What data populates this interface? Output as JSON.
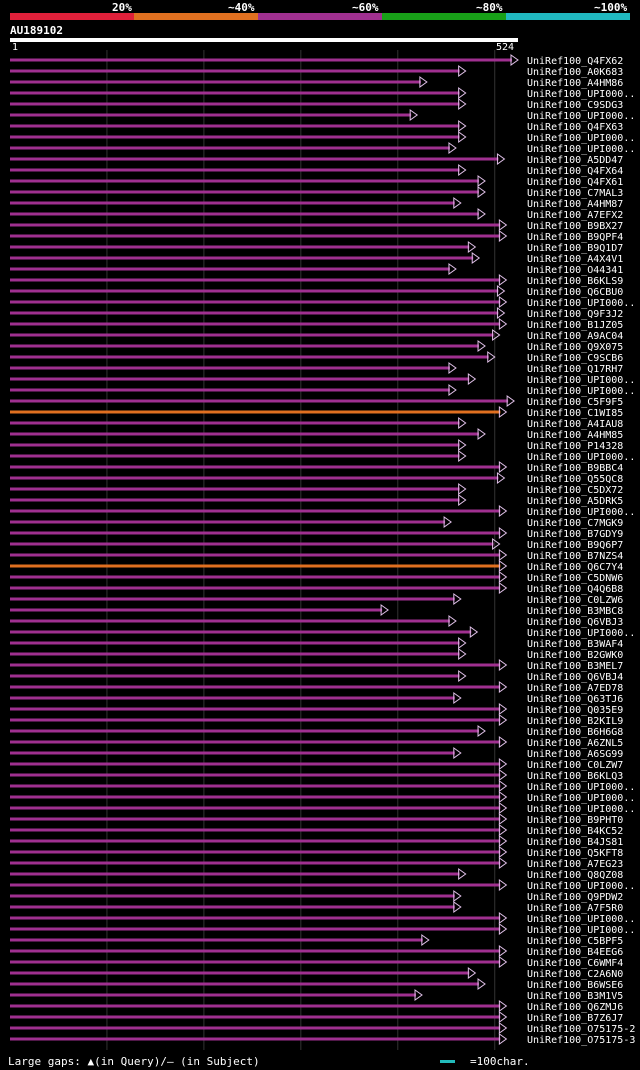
{
  "legend": {
    "labels": [
      "20%",
      "~40%",
      "~60%",
      "~80%",
      "~100%"
    ],
    "colors": [
      "#e0203a",
      "#e07020",
      "#a03090",
      "#18a018",
      "#20b8c0"
    ]
  },
  "query": {
    "id": "AU189102",
    "start_label": "1",
    "end_label": "524"
  },
  "footer": {
    "gaps_text": "Large gaps: ▲(in Query)/– (in Subject)",
    "scale_text": "=100char."
  },
  "chart_data": {
    "type": "alignment",
    "query_length": 524,
    "hits": [
      {
        "name": "UniRef100_Q4FX62",
        "end": 524,
        "color": "#a03090"
      },
      {
        "name": "UniRef100_A0K683",
        "end": 470,
        "color": "#a03090"
      },
      {
        "name": "UniRef100_A4HM86",
        "end": 430,
        "color": "#a03090"
      },
      {
        "name": "UniRef100_UPI000..",
        "end": 470,
        "color": "#a03090"
      },
      {
        "name": "UniRef100_C9SDG3",
        "end": 470,
        "color": "#a03090"
      },
      {
        "name": "UniRef100_UPI000..",
        "end": 420,
        "color": "#a03090"
      },
      {
        "name": "UniRef100_Q4FX63",
        "end": 470,
        "color": "#a03090"
      },
      {
        "name": "UniRef100_UPI000..",
        "end": 470,
        "color": "#a03090"
      },
      {
        "name": "UniRef100_UPI000..",
        "end": 460,
        "color": "#a03090"
      },
      {
        "name": "UniRef100_A5DD47",
        "end": 510,
        "color": "#a03090"
      },
      {
        "name": "UniRef100_Q4FX64",
        "end": 470,
        "color": "#a03090"
      },
      {
        "name": "UniRef100_Q4FX61",
        "end": 490,
        "color": "#a03090"
      },
      {
        "name": "UniRef100_C7MAL3",
        "end": 490,
        "color": "#a03090"
      },
      {
        "name": "UniRef100_A4HM87",
        "end": 465,
        "color": "#a03090"
      },
      {
        "name": "UniRef100_A7EFX2",
        "end": 490,
        "color": "#a03090"
      },
      {
        "name": "UniRef100_B9BX27",
        "end": 512,
        "color": "#a03090"
      },
      {
        "name": "UniRef100_B9QPF4",
        "end": 512,
        "color": "#a03090"
      },
      {
        "name": "UniRef100_B9Q1D7",
        "end": 480,
        "color": "#a03090"
      },
      {
        "name": "UniRef100_A4X4V1",
        "end": 484,
        "color": "#a03090"
      },
      {
        "name": "UniRef100_O44341",
        "end": 460,
        "color": "#a03090"
      },
      {
        "name": "UniRef100_B6KLS9",
        "end": 512,
        "color": "#a03090"
      },
      {
        "name": "UniRef100_Q6CBU0",
        "end": 510,
        "color": "#a03090"
      },
      {
        "name": "UniRef100_UPI000..",
        "end": 512,
        "color": "#a03090"
      },
      {
        "name": "UniRef100_Q9F3J2",
        "end": 510,
        "color": "#a03090"
      },
      {
        "name": "UniRef100_B1JZ05",
        "end": 512,
        "color": "#a03090"
      },
      {
        "name": "UniRef100_A9AC04",
        "end": 505,
        "color": "#a03090"
      },
      {
        "name": "UniRef100_Q9X075",
        "end": 490,
        "color": "#a03090"
      },
      {
        "name": "UniRef100_C9SCB6",
        "end": 500,
        "color": "#a03090"
      },
      {
        "name": "UniRef100_Q17RH7",
        "end": 460,
        "color": "#a03090"
      },
      {
        "name": "UniRef100_UPI000..",
        "end": 480,
        "color": "#a03090"
      },
      {
        "name": "UniRef100_UPI000..",
        "end": 460,
        "color": "#a03090"
      },
      {
        "name": "UniRef100_C5F9F5",
        "end": 520,
        "color": "#a03090"
      },
      {
        "name": "UniRef100_C1WI85",
        "end": 512,
        "color": "#e07020"
      },
      {
        "name": "UniRef100_A4IAU8",
        "end": 470,
        "color": "#a03090"
      },
      {
        "name": "UniRef100_A4HM85",
        "end": 490,
        "color": "#a03090"
      },
      {
        "name": "UniRef100_P14328",
        "end": 470,
        "color": "#a03090"
      },
      {
        "name": "UniRef100_UPI000..",
        "end": 470,
        "color": "#a03090"
      },
      {
        "name": "UniRef100_B9BBC4",
        "end": 512,
        "color": "#a03090"
      },
      {
        "name": "UniRef100_Q55QC8",
        "end": 510,
        "color": "#a03090"
      },
      {
        "name": "UniRef100_C5DX72",
        "end": 470,
        "color": "#a03090"
      },
      {
        "name": "UniRef100_A5DRK5",
        "end": 470,
        "color": "#a03090"
      },
      {
        "name": "UniRef100_UPI000..",
        "end": 512,
        "color": "#a03090"
      },
      {
        "name": "UniRef100_C7MGK9",
        "end": 455,
        "color": "#a03090"
      },
      {
        "name": "UniRef100_B7GDY9",
        "end": 512,
        "color": "#a03090"
      },
      {
        "name": "UniRef100_B9Q6P7",
        "end": 505,
        "color": "#a03090"
      },
      {
        "name": "UniRef100_B7NZS4",
        "end": 512,
        "color": "#a03090"
      },
      {
        "name": "UniRef100_Q6C7Y4",
        "end": 512,
        "color": "#e07020"
      },
      {
        "name": "UniRef100_C5DNW6",
        "end": 512,
        "color": "#a03090"
      },
      {
        "name": "UniRef100_Q4Q6B8",
        "end": 512,
        "color": "#a03090"
      },
      {
        "name": "UniRef100_C0LZW6",
        "end": 465,
        "color": "#a03090"
      },
      {
        "name": "UniRef100_B3MBC8",
        "end": 390,
        "color": "#a03090"
      },
      {
        "name": "UniRef100_Q6VBJ3",
        "end": 460,
        "color": "#a03090"
      },
      {
        "name": "UniRef100_UPI000..",
        "end": 482,
        "color": "#a03090"
      },
      {
        "name": "UniRef100_B3WAF4",
        "end": 470,
        "color": "#a03090"
      },
      {
        "name": "UniRef100_B2GWK0",
        "end": 470,
        "color": "#a03090"
      },
      {
        "name": "UniRef100_B3MEL7",
        "end": 512,
        "color": "#a03090"
      },
      {
        "name": "UniRef100_Q6VBJ4",
        "end": 470,
        "color": "#a03090"
      },
      {
        "name": "UniRef100_A7ED78",
        "end": 512,
        "color": "#a03090"
      },
      {
        "name": "UniRef100_Q63TJ6",
        "end": 465,
        "color": "#a03090"
      },
      {
        "name": "UniRef100_Q035E9",
        "end": 512,
        "color": "#a03090"
      },
      {
        "name": "UniRef100_B2KIL9",
        "end": 512,
        "color": "#a03090"
      },
      {
        "name": "UniRef100_B6H6G8",
        "end": 490,
        "color": "#a03090"
      },
      {
        "name": "UniRef100_A6ZNL5",
        "end": 512,
        "color": "#a03090"
      },
      {
        "name": "UniRef100_A6SG99",
        "end": 465,
        "color": "#a03090"
      },
      {
        "name": "UniRef100_C0LZW7",
        "end": 512,
        "color": "#a03090"
      },
      {
        "name": "UniRef100_B6KLQ3",
        "end": 512,
        "color": "#a03090"
      },
      {
        "name": "UniRef100_UPI000..",
        "end": 512,
        "color": "#a03090"
      },
      {
        "name": "UniRef100_UPI000..",
        "end": 512,
        "color": "#a03090"
      },
      {
        "name": "UniRef100_UPI000..",
        "end": 512,
        "color": "#a03090"
      },
      {
        "name": "UniRef100_B9PHT0",
        "end": 512,
        "color": "#a03090"
      },
      {
        "name": "UniRef100_B4KC52",
        "end": 512,
        "color": "#a03090"
      },
      {
        "name": "UniRef100_B4JS81",
        "end": 512,
        "color": "#a03090"
      },
      {
        "name": "UniRef100_Q5KFT8",
        "end": 512,
        "color": "#a03090"
      },
      {
        "name": "UniRef100_A7EG23",
        "end": 512,
        "color": "#a03090"
      },
      {
        "name": "UniRef100_Q8QZ08",
        "end": 470,
        "color": "#a03090"
      },
      {
        "name": "UniRef100_UPI000..",
        "end": 512,
        "color": "#a03090"
      },
      {
        "name": "UniRef100_Q9PDW2",
        "end": 465,
        "color": "#a03090"
      },
      {
        "name": "UniRef100_A7F5R0",
        "end": 465,
        "color": "#a03090"
      },
      {
        "name": "UniRef100_UPI000..",
        "end": 512,
        "color": "#a03090"
      },
      {
        "name": "UniRef100_UPI000..",
        "end": 512,
        "color": "#a03090"
      },
      {
        "name": "UniRef100_C5BPF5",
        "end": 432,
        "color": "#a03090"
      },
      {
        "name": "UniRef100_B4EEG6",
        "end": 512,
        "color": "#a03090"
      },
      {
        "name": "UniRef100_C6WMF4",
        "end": 512,
        "color": "#a03090"
      },
      {
        "name": "UniRef100_C2A6N0",
        "end": 480,
        "color": "#a03090"
      },
      {
        "name": "UniRef100_B6WSE6",
        "end": 490,
        "color": "#a03090"
      },
      {
        "name": "UniRef100_B3M1V5",
        "end": 425,
        "color": "#a03090"
      },
      {
        "name": "UniRef100_Q6ZMJ6",
        "end": 512,
        "color": "#a03090"
      },
      {
        "name": "UniRef100_B7Z6J7",
        "end": 512,
        "color": "#a03090"
      },
      {
        "name": "UniRef100_O75175-2",
        "end": 512,
        "color": "#a03090"
      },
      {
        "name": "UniRef100_O75175-3",
        "end": 512,
        "color": "#a03090"
      }
    ]
  }
}
